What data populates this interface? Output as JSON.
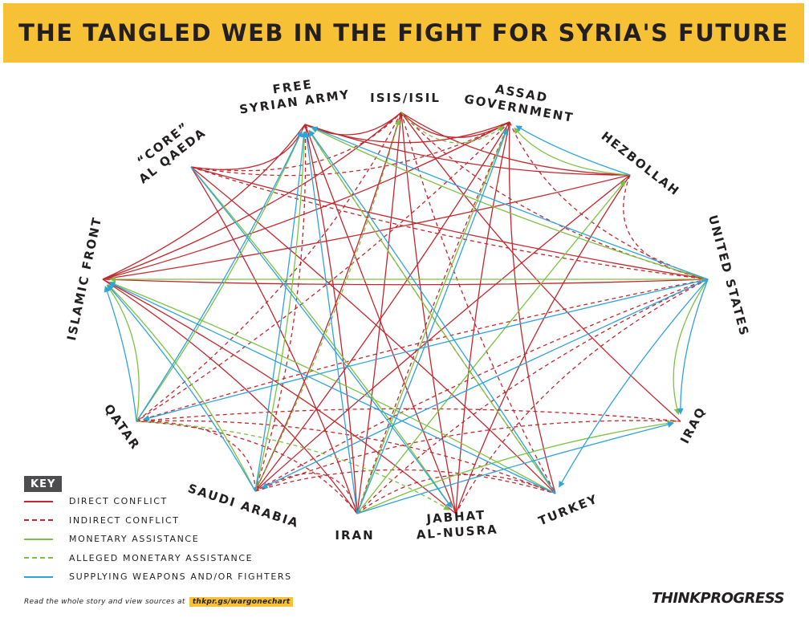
{
  "header": {
    "title": "THE TANGLED WEB IN THE FIGHT FOR SYRIA'S FUTURE"
  },
  "colors": {
    "banner": "#f7c136",
    "direct_conflict": "#c1272d",
    "indirect_conflict": "#c1272d",
    "monetary": "#7cc242",
    "alleged_monetary": "#7cc242",
    "weapons": "#2ea3dc"
  },
  "nodes": [
    {
      "id": "fsa",
      "lines": [
        "FREE",
        "SYRIAN ARMY"
      ]
    },
    {
      "id": "isis",
      "lines": [
        "ISIS/ISIL"
      ]
    },
    {
      "id": "assad",
      "lines": [
        "ASSAD",
        "GOVERNMENT"
      ]
    },
    {
      "id": "hezbollah",
      "lines": [
        "HEZBOLLAH"
      ]
    },
    {
      "id": "us",
      "lines": [
        "UNITED STATES"
      ]
    },
    {
      "id": "iraq",
      "lines": [
        "IRAQ"
      ]
    },
    {
      "id": "turkey",
      "lines": [
        "TURKEY"
      ]
    },
    {
      "id": "nusra",
      "lines": [
        "JABHAT",
        "AL-NUSRA"
      ]
    },
    {
      "id": "iran",
      "lines": [
        "IRAN"
      ]
    },
    {
      "id": "saudi",
      "lines": [
        "SAUDI ARABIA"
      ]
    },
    {
      "id": "qatar",
      "lines": [
        "QATAR"
      ]
    },
    {
      "id": "islamic",
      "lines": [
        "ISLAMIC FRONT"
      ]
    },
    {
      "id": "aq",
      "lines": [
        "“CORE”",
        "AL QAEDA"
      ]
    }
  ],
  "edges": [
    {
      "from": "fsa",
      "to": "isis",
      "type": "direct"
    },
    {
      "from": "fsa",
      "to": "assad",
      "type": "direct"
    },
    {
      "from": "fsa",
      "to": "hezbollah",
      "type": "direct"
    },
    {
      "from": "fsa",
      "to": "nusra",
      "type": "direct"
    },
    {
      "from": "fsa",
      "to": "iran",
      "type": "direct"
    },
    {
      "from": "fsa",
      "to": "aq",
      "type": "direct"
    },
    {
      "from": "fsa",
      "to": "islamic",
      "type": "direct"
    },
    {
      "from": "isis",
      "to": "assad",
      "type": "direct"
    },
    {
      "from": "isis",
      "to": "islamic",
      "type": "direct"
    },
    {
      "from": "isis",
      "to": "nusra",
      "type": "direct"
    },
    {
      "from": "isis",
      "to": "iran",
      "type": "direct"
    },
    {
      "from": "isis",
      "to": "iraq",
      "type": "direct"
    },
    {
      "from": "isis",
      "to": "hezbollah",
      "type": "direct"
    },
    {
      "from": "isis",
      "to": "saudi",
      "type": "direct"
    },
    {
      "from": "assad",
      "to": "islamic",
      "type": "direct"
    },
    {
      "from": "assad",
      "to": "turkey",
      "type": "direct"
    },
    {
      "from": "assad",
      "to": "nusra",
      "type": "direct"
    },
    {
      "from": "assad",
      "to": "saudi",
      "type": "direct"
    },
    {
      "from": "hezbollah",
      "to": "islamic",
      "type": "direct"
    },
    {
      "from": "hezbollah",
      "to": "nusra",
      "type": "direct"
    },
    {
      "from": "hezbollah",
      "to": "saudi",
      "type": "direct"
    },
    {
      "from": "us",
      "to": "islamic",
      "type": "direct"
    },
    {
      "from": "us",
      "to": "aq",
      "type": "direct"
    },
    {
      "from": "iran",
      "to": "islamic",
      "type": "direct"
    },
    {
      "from": "iran",
      "to": "aq",
      "type": "direct"
    },
    {
      "from": "nusra",
      "to": "islamic",
      "type": "direct"
    },
    {
      "from": "turkey",
      "to": "aq",
      "type": "direct"
    },
    {
      "from": "fsa",
      "to": "saudi",
      "type": "indirect"
    },
    {
      "from": "fsa",
      "to": "turkey",
      "type": "indirect"
    },
    {
      "from": "isis",
      "to": "qatar",
      "type": "indirect"
    },
    {
      "from": "isis",
      "to": "us",
      "type": "indirect"
    },
    {
      "from": "isis",
      "to": "turkey",
      "type": "indirect"
    },
    {
      "from": "assad",
      "to": "us",
      "type": "indirect"
    },
    {
      "from": "assad",
      "to": "qatar",
      "type": "indirect"
    },
    {
      "from": "assad",
      "to": "iran",
      "type": "indirect"
    },
    {
      "from": "hezbollah",
      "to": "us",
      "type": "indirect"
    },
    {
      "from": "aq",
      "to": "us",
      "type": "indirect"
    },
    {
      "from": "aq",
      "to": "assad",
      "type": "indirect"
    },
    {
      "from": "aq",
      "to": "isis",
      "type": "indirect"
    },
    {
      "from": "us",
      "to": "iran",
      "type": "indirect"
    },
    {
      "from": "us",
      "to": "nusra",
      "type": "indirect"
    },
    {
      "from": "us",
      "to": "saudi",
      "type": "indirect"
    },
    {
      "from": "us",
      "to": "qatar",
      "type": "indirect"
    },
    {
      "from": "iran",
      "to": "qatar",
      "type": "indirect"
    },
    {
      "from": "iran",
      "to": "turkey",
      "type": "indirect"
    },
    {
      "from": "saudi",
      "to": "turkey",
      "type": "indirect"
    },
    {
      "from": "qatar",
      "to": "turkey",
      "type": "indirect"
    },
    {
      "from": "qatar",
      "to": "iraq",
      "type": "indirect"
    },
    {
      "from": "saudi",
      "to": "iraq",
      "type": "indirect"
    },
    {
      "from": "saudi",
      "to": "qatar",
      "type": "indirect"
    },
    {
      "from": "iran",
      "to": "saudi",
      "type": "indirect"
    },
    {
      "from": "qatar",
      "to": "fsa",
      "type": "monetary"
    },
    {
      "from": "qatar",
      "to": "islamic",
      "type": "monetary"
    },
    {
      "from": "saudi",
      "to": "fsa",
      "type": "monetary"
    },
    {
      "from": "saudi",
      "to": "islamic",
      "type": "monetary"
    },
    {
      "from": "us",
      "to": "fsa",
      "type": "monetary"
    },
    {
      "from": "us",
      "to": "islamic",
      "type": "monetary"
    },
    {
      "from": "us",
      "to": "iraq",
      "type": "monetary"
    },
    {
      "from": "iran",
      "to": "assad",
      "type": "monetary"
    },
    {
      "from": "iran",
      "to": "hezbollah",
      "type": "monetary"
    },
    {
      "from": "iran",
      "to": "iraq",
      "type": "monetary"
    },
    {
      "from": "turkey",
      "to": "fsa",
      "type": "monetary"
    },
    {
      "from": "turkey",
      "to": "islamic",
      "type": "monetary"
    },
    {
      "from": "hezbollah",
      "to": "assad",
      "type": "monetary"
    },
    {
      "from": "aq",
      "to": "nusra",
      "type": "monetary"
    },
    {
      "from": "isis",
      "to": "assad",
      "type": "alleged"
    },
    {
      "from": "qatar",
      "to": "nusra",
      "type": "alleged"
    },
    {
      "from": "saudi",
      "to": "isis",
      "type": "alleged"
    },
    {
      "from": "qatar",
      "to": "fsa",
      "type": "weapons"
    },
    {
      "from": "qatar",
      "to": "islamic",
      "type": "weapons"
    },
    {
      "from": "saudi",
      "to": "fsa",
      "type": "weapons"
    },
    {
      "from": "saudi",
      "to": "islamic",
      "type": "weapons"
    },
    {
      "from": "us",
      "to": "fsa",
      "type": "weapons"
    },
    {
      "from": "us",
      "to": "iraq",
      "type": "weapons"
    },
    {
      "from": "us",
      "to": "qatar",
      "type": "weapons"
    },
    {
      "from": "us",
      "to": "saudi",
      "type": "weapons"
    },
    {
      "from": "us",
      "to": "turkey",
      "type": "weapons"
    },
    {
      "from": "iran",
      "to": "assad",
      "type": "weapons"
    },
    {
      "from": "iran",
      "to": "fsa",
      "type": "weapons"
    },
    {
      "from": "iran",
      "to": "iraq",
      "type": "weapons"
    },
    {
      "from": "turkey",
      "to": "fsa",
      "type": "weapons"
    },
    {
      "from": "turkey",
      "to": "islamic",
      "type": "weapons"
    },
    {
      "from": "hezbollah",
      "to": "assad",
      "type": "weapons"
    },
    {
      "from": "aq",
      "to": "nusra",
      "type": "weapons"
    }
  ],
  "key": {
    "title": "KEY",
    "items": [
      {
        "type": "direct",
        "label": "DIRECT CONFLICT"
      },
      {
        "type": "indirect",
        "label": "INDIRECT CONFLICT"
      },
      {
        "type": "monetary",
        "label": "MONETARY ASSISTANCE"
      },
      {
        "type": "alleged",
        "label": "ALLEGED MONETARY ASSISTANCE"
      },
      {
        "type": "weapons",
        "label": "SUPPLYING WEAPONS AND/OR FIGHTERS"
      }
    ]
  },
  "footer": {
    "text": "Read the whole story and view sources at",
    "link": "thkpr.gs/wargonechart"
  },
  "logo": {
    "text": "THINKPROGRESS"
  }
}
